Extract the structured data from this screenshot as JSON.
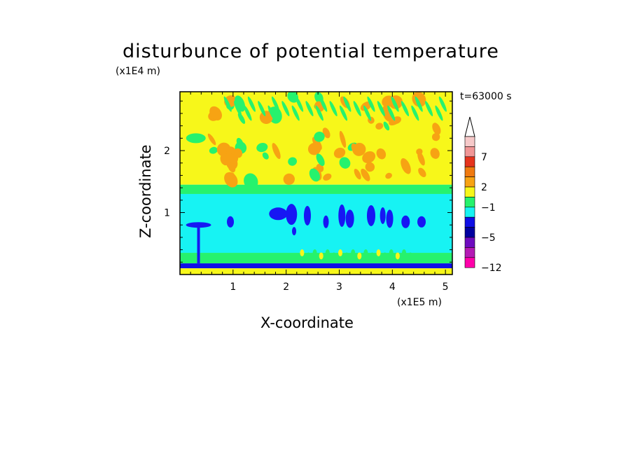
{
  "chart_data": {
    "type": "heatmap",
    "title": "disturbunce of potential temperature",
    "xlabel": "X-coordinate",
    "ylabel": "Z-coordinate",
    "x_unit": "(x1E5 m)",
    "y_unit": "(x1E4 m)",
    "annotation": "t=63000 s",
    "xlim": [
      0,
      5.13
    ],
    "ylim": [
      0,
      2.95
    ],
    "xticks": [
      "1",
      "2",
      "3",
      "4",
      "5"
    ],
    "yticks": [
      "1",
      "2"
    ],
    "colorbar": {
      "tick_labels": [
        "7",
        "2",
        "−1",
        "−5",
        "−12"
      ],
      "colors_top_to_bottom": [
        "#f6c9c9",
        "#f19696",
        "#e6341d",
        "#f07a10",
        "#f7a313",
        "#f7f71a",
        "#26f26d",
        "#17f3f3",
        "#0f0fe6",
        "#0000a0",
        "#6e0bbf",
        "#b41ab4",
        "#ff00aa"
      ],
      "extend": "max"
    },
    "field": {
      "description_levels": [
        "upper layer mostly 0..2 with alternating wave bands",
        "mid layer about -1..-2 with negative cells",
        "near-surface strong negative band"
      ],
      "bands": [
        {
          "z_from": 1.45,
          "z_to": 2.95,
          "dominant": "#f7f71a"
        },
        {
          "z_from": 1.3,
          "z_to": 1.45,
          "dominant": "#26f26d"
        },
        {
          "z_from": 0.35,
          "z_to": 1.3,
          "dominant": "#17f3f3"
        },
        {
          "z_from": 0.18,
          "z_to": 0.35,
          "dominant": "#26f26d"
        },
        {
          "z_from": 0.1,
          "z_to": 0.18,
          "dominant": "#0f0fe6"
        },
        {
          "z_from": 0.0,
          "z_to": 0.1,
          "dominant": "#f7f71a"
        }
      ]
    }
  }
}
